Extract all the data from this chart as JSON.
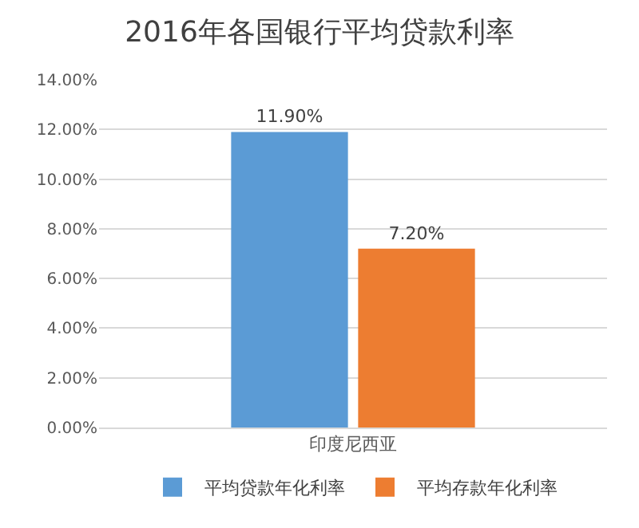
{
  "chart_data": {
    "type": "bar",
    "title": "2016年各国银行平均贷款利率",
    "categories": [
      "印度尼西亚"
    ],
    "series": [
      {
        "name": "平均贷款年化利率",
        "color": "#5b9bd5",
        "values": [
          11.9
        ],
        "value_labels": [
          "11.90%"
        ]
      },
      {
        "name": "平均存款年化利率",
        "color": "#ed7d31",
        "values": [
          7.2
        ],
        "value_labels": [
          "7.20%"
        ]
      }
    ],
    "ylim": [
      0,
      14
    ],
    "yticks": [
      {
        "value": 0,
        "label": "0.00%"
      },
      {
        "value": 2,
        "label": "2.00%"
      },
      {
        "value": 4,
        "label": "4.00%"
      },
      {
        "value": 6,
        "label": "6.00%"
      },
      {
        "value": 8,
        "label": "8.00%"
      },
      {
        "value": 10,
        "label": "10.00%"
      },
      {
        "value": 12,
        "label": "12.00%"
      },
      {
        "value": 14,
        "label": "14.00%"
      }
    ],
    "grid": "y",
    "legend": "bottom"
  }
}
